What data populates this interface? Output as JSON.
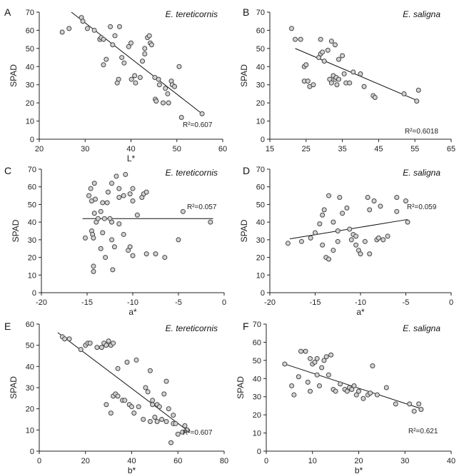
{
  "chart_data": [
    {
      "type": "scatter",
      "letter": "A",
      "title": "E. tereticornis",
      "xlabel": "L*",
      "ylabel": "SPAD",
      "xlim": [
        20,
        60
      ],
      "ylim": [
        0,
        70
      ],
      "xticks": [
        "20",
        "30",
        "40",
        "50",
        "60"
      ],
      "yticks": [
        "0",
        "10",
        "20",
        "30",
        "40",
        "50",
        "60",
        "70"
      ],
      "r2_label": "R²=0.607",
      "trend": [
        [
          27,
          70
        ],
        [
          55.5,
          14
        ]
      ],
      "points": [
        [
          25,
          59
        ],
        [
          26.5,
          61
        ],
        [
          29.2,
          67
        ],
        [
          29.5,
          65
        ],
        [
          30.5,
          61
        ],
        [
          32,
          60
        ],
        [
          33.2,
          55
        ],
        [
          33.5,
          56
        ],
        [
          34,
          55
        ],
        [
          34,
          41
        ],
        [
          34.6,
          44
        ],
        [
          35.5,
          62
        ],
        [
          36,
          52
        ],
        [
          36.5,
          57
        ],
        [
          37,
          31
        ],
        [
          37.3,
          33
        ],
        [
          37.5,
          62
        ],
        [
          38,
          45
        ],
        [
          38.5,
          42
        ],
        [
          39.5,
          51
        ],
        [
          40,
          53
        ],
        [
          40.1,
          33
        ],
        [
          40.8,
          35
        ],
        [
          41,
          31
        ],
        [
          42,
          34
        ],
        [
          42.5,
          43
        ],
        [
          43,
          47
        ],
        [
          43,
          50
        ],
        [
          43.6,
          56
        ],
        [
          44,
          57
        ],
        [
          44.2,
          53
        ],
        [
          44.5,
          52
        ],
        [
          45.2,
          34
        ],
        [
          45.3,
          22
        ],
        [
          45.5,
          21
        ],
        [
          46,
          33
        ],
        [
          46.2,
          30
        ],
        [
          47,
          20
        ],
        [
          47.5,
          28
        ],
        [
          48,
          25
        ],
        [
          48.2,
          20
        ],
        [
          48.8,
          32
        ],
        [
          49,
          30
        ],
        [
          49.5,
          29
        ],
        [
          50.5,
          40
        ],
        [
          51,
          12
        ],
        [
          55.5,
          14
        ]
      ]
    },
    {
      "type": "scatter",
      "letter": "B",
      "title": "E. saligna",
      "xlabel": "",
      "ylabel": "SPAD",
      "xlim": [
        15,
        65
      ],
      "ylim": [
        0,
        70
      ],
      "xticks": [
        "15",
        "25",
        "35",
        "45",
        "55",
        "65"
      ],
      "yticks": [
        "0",
        "10",
        "20",
        "30",
        "40",
        "50",
        "60",
        "70"
      ],
      "r2_label": "R²=0.6018",
      "trend": [
        [
          22,
          50
        ],
        [
          56,
          21
        ]
      ],
      "points": [
        [
          21,
          61
        ],
        [
          22,
          55
        ],
        [
          23.5,
          55
        ],
        [
          24.5,
          40
        ],
        [
          24.5,
          32
        ],
        [
          25,
          41
        ],
        [
          25.5,
          32
        ],
        [
          26,
          29
        ],
        [
          27,
          30
        ],
        [
          28.5,
          45
        ],
        [
          29,
          47
        ],
        [
          29.5,
          48
        ],
        [
          29,
          55
        ],
        [
          30,
          43
        ],
        [
          31,
          49
        ],
        [
          31.5,
          33
        ],
        [
          32,
          31
        ],
        [
          32.5,
          35
        ],
        [
          32,
          54
        ],
        [
          33,
          52
        ],
        [
          33,
          33
        ],
        [
          33.3,
          34
        ],
        [
          33.5,
          30
        ],
        [
          34,
          33
        ],
        [
          34,
          44
        ],
        [
          35,
          46
        ],
        [
          35.5,
          36
        ],
        [
          36,
          31
        ],
        [
          37,
          31
        ],
        [
          38,
          37
        ],
        [
          40,
          36
        ],
        [
          41,
          29
        ],
        [
          43.5,
          24
        ],
        [
          44,
          23
        ],
        [
          52,
          25
        ],
        [
          55.5,
          21
        ],
        [
          56,
          27
        ]
      ]
    },
    {
      "type": "scatter",
      "letter": "C",
      "title": "E. tereticornis",
      "xlabel": "a*",
      "ylabel": "SPAD",
      "xlim": [
        -20,
        0
      ],
      "ylim": [
        0,
        70
      ],
      "xticks": [
        "-20",
        "-15",
        "-10",
        "-5",
        "0"
      ],
      "yticks": [
        "0",
        "10",
        "20",
        "30",
        "40",
        "50",
        "60",
        "70"
      ],
      "r2_label": "R²=0.057",
      "trend": [
        [
          -15.5,
          42
        ],
        [
          -1.2,
          42
        ]
      ],
      "points": [
        [
          -15.2,
          31
        ],
        [
          -14.8,
          55
        ],
        [
          -14.6,
          59
        ],
        [
          -14.5,
          52
        ],
        [
          -14.5,
          35
        ],
        [
          -14.4,
          33
        ],
        [
          -14.3,
          31
        ],
        [
          -14.3,
          15
        ],
        [
          -14.3,
          12
        ],
        [
          -14.2,
          62
        ],
        [
          -14.2,
          45
        ],
        [
          -14.1,
          53
        ],
        [
          -14.0,
          40
        ],
        [
          -13.8,
          42
        ],
        [
          -13.5,
          46
        ],
        [
          -13.5,
          25
        ],
        [
          -13.3,
          51
        ],
        [
          -13.3,
          34
        ],
        [
          -13.1,
          42
        ],
        [
          -13,
          20
        ],
        [
          -12.8,
          51
        ],
        [
          -12.7,
          57
        ],
        [
          -12.5,
          42
        ],
        [
          -12.3,
          62
        ],
        [
          -12.3,
          40
        ],
        [
          -12.3,
          30
        ],
        [
          -12.2,
          13
        ],
        [
          -12,
          26
        ],
        [
          -11.8,
          66
        ],
        [
          -11.5,
          59
        ],
        [
          -11.5,
          54
        ],
        [
          -11.5,
          39
        ],
        [
          -11,
          55
        ],
        [
          -11,
          33
        ],
        [
          -10.8,
          67
        ],
        [
          -10.5,
          24
        ],
        [
          -10.3,
          56
        ],
        [
          -10.3,
          26
        ],
        [
          -10,
          59
        ],
        [
          -10,
          52
        ],
        [
          -10,
          21
        ],
        [
          -9.5,
          44
        ],
        [
          -9,
          54
        ],
        [
          -8.8,
          56
        ],
        [
          -8.5,
          57
        ],
        [
          -8.5,
          22
        ],
        [
          -7.5,
          22
        ],
        [
          -6.5,
          20
        ],
        [
          -5,
          30
        ],
        [
          -4.5,
          46
        ],
        [
          -1.5,
          40
        ]
      ]
    },
    {
      "type": "scatter",
      "letter": "D",
      "title": "E. saligna",
      "xlabel": "a*",
      "ylabel": "SPAD",
      "xlim": [
        -20,
        0
      ],
      "ylim": [
        0,
        70
      ],
      "xticks": [
        "-20",
        "-15",
        "-10",
        "-5",
        "0"
      ],
      "yticks": [
        "0",
        "10",
        "20",
        "30",
        "40",
        "50",
        "60",
        "70"
      ],
      "r2_label": "R²=0.059",
      "trend": [
        [
          -17.8,
          30.5
        ],
        [
          -4.8,
          41.5
        ]
      ],
      "points": [
        [
          -18,
          28
        ],
        [
          -16.5,
          29
        ],
        [
          -15.5,
          31
        ],
        [
          -15,
          34
        ],
        [
          -14.5,
          39
        ],
        [
          -14.2,
          44
        ],
        [
          -14.2,
          27
        ],
        [
          -14,
          47
        ],
        [
          -13.8,
          20
        ],
        [
          -13.5,
          55
        ],
        [
          -13.5,
          19
        ],
        [
          -13,
          40
        ],
        [
          -13,
          24
        ],
        [
          -12.5,
          29
        ],
        [
          -12.5,
          35
        ],
        [
          -12.3,
          54
        ],
        [
          -12,
          45
        ],
        [
          -11.5,
          48
        ],
        [
          -11.2,
          36
        ],
        [
          -11,
          30
        ],
        [
          -10.8,
          33
        ],
        [
          -10.5,
          32
        ],
        [
          -10.5,
          27
        ],
        [
          -10.2,
          24
        ],
        [
          -10,
          22
        ],
        [
          -9.5,
          29
        ],
        [
          -9.2,
          54
        ],
        [
          -9,
          47
        ],
        [
          -9,
          22
        ],
        [
          -8.5,
          52
        ],
        [
          -8.2,
          30
        ],
        [
          -8,
          31
        ],
        [
          -7.8,
          49
        ],
        [
          -7.5,
          30
        ],
        [
          -7,
          32
        ],
        [
          -6,
          46
        ],
        [
          -6,
          54
        ],
        [
          -5,
          52
        ],
        [
          -4.8,
          40
        ]
      ]
    },
    {
      "type": "scatter",
      "letter": "E",
      "title": "E. tereticornis",
      "xlabel": "b*",
      "ylabel": "SPAD",
      "xlim": [
        0,
        80
      ],
      "ylim": [
        0,
        60
      ],
      "xticks": [
        "0",
        "20",
        "40",
        "60",
        "80"
      ],
      "yticks": [
        "0",
        "10",
        "20",
        "30",
        "40",
        "50",
        "60"
      ],
      "r2_label": "R²=0.607",
      "trend": [
        [
          8,
          56
        ],
        [
          65,
          9
        ]
      ],
      "points": [
        [
          10,
          54
        ],
        [
          11,
          53
        ],
        [
          13,
          53
        ],
        [
          18,
          48
        ],
        [
          20,
          50
        ],
        [
          21,
          51
        ],
        [
          22,
          51
        ],
        [
          25,
          49
        ],
        [
          27,
          49
        ],
        [
          28,
          51
        ],
        [
          29,
          50
        ],
        [
          29,
          22
        ],
        [
          30,
          52
        ],
        [
          31,
          18
        ],
        [
          31,
          50
        ],
        [
          32,
          51
        ],
        [
          32,
          26
        ],
        [
          33,
          27
        ],
        [
          34,
          26
        ],
        [
          34,
          39
        ],
        [
          36,
          24
        ],
        [
          37,
          24
        ],
        [
          38,
          42
        ],
        [
          39,
          22
        ],
        [
          40,
          21
        ],
        [
          41,
          18
        ],
        [
          42,
          43
        ],
        [
          43,
          21
        ],
        [
          45,
          15
        ],
        [
          46,
          30
        ],
        [
          47,
          28
        ],
        [
          48,
          38
        ],
        [
          48,
          14
        ],
        [
          49,
          24
        ],
        [
          49,
          22
        ],
        [
          50,
          16
        ],
        [
          51,
          22
        ],
        [
          51,
          14
        ],
        [
          52,
          21
        ],
        [
          53,
          15
        ],
        [
          54,
          27
        ],
        [
          55,
          14
        ],
        [
          55,
          33
        ],
        [
          56,
          20
        ],
        [
          57,
          4
        ],
        [
          58,
          17
        ],
        [
          58,
          13
        ],
        [
          59,
          13
        ],
        [
          60,
          8
        ],
        [
          62,
          9
        ],
        [
          63,
          12
        ],
        [
          64,
          10
        ]
      ]
    },
    {
      "type": "scatter",
      "letter": "F",
      "title": "E. saligna",
      "xlabel": "b*",
      "ylabel": "SPAD",
      "xlim": [
        0,
        40
      ],
      "ylim": [
        0,
        70
      ],
      "xticks": [
        "0",
        "10",
        "20",
        "30",
        "40"
      ],
      "yticks": [
        "0",
        "10",
        "20",
        "30",
        "40",
        "50",
        "60",
        "70"
      ],
      "r2_label": "R²=0.621",
      "trend": [
        [
          4,
          48
        ],
        [
          34,
          23
        ]
      ],
      "points": [
        [
          4,
          48
        ],
        [
          5.5,
          36
        ],
        [
          6,
          31
        ],
        [
          7,
          41
        ],
        [
          7.5,
          55
        ],
        [
          8.5,
          55
        ],
        [
          9,
          38
        ],
        [
          9.5,
          33
        ],
        [
          9.5,
          51
        ],
        [
          10,
          48
        ],
        [
          10.5,
          49
        ],
        [
          11,
          42
        ],
        [
          11,
          51
        ],
        [
          11.5,
          36
        ],
        [
          12,
          46
        ],
        [
          12.5,
          50
        ],
        [
          13,
          52
        ],
        [
          13.5,
          42
        ],
        [
          14,
          53
        ],
        [
          14.5,
          34
        ],
        [
          15,
          33
        ],
        [
          16,
          37
        ],
        [
          17,
          34
        ],
        [
          17.5,
          33
        ],
        [
          18,
          35
        ],
        [
          18.5,
          34
        ],
        [
          19,
          36
        ],
        [
          19.5,
          31
        ],
        [
          20,
          33
        ],
        [
          21,
          29
        ],
        [
          22,
          31
        ],
        [
          22.5,
          32
        ],
        [
          23,
          47
        ],
        [
          24,
          31
        ],
        [
          26,
          35
        ],
        [
          28,
          26
        ],
        [
          31,
          26
        ],
        [
          32,
          22
        ],
        [
          33,
          26
        ],
        [
          33.5,
          23
        ]
      ]
    }
  ]
}
